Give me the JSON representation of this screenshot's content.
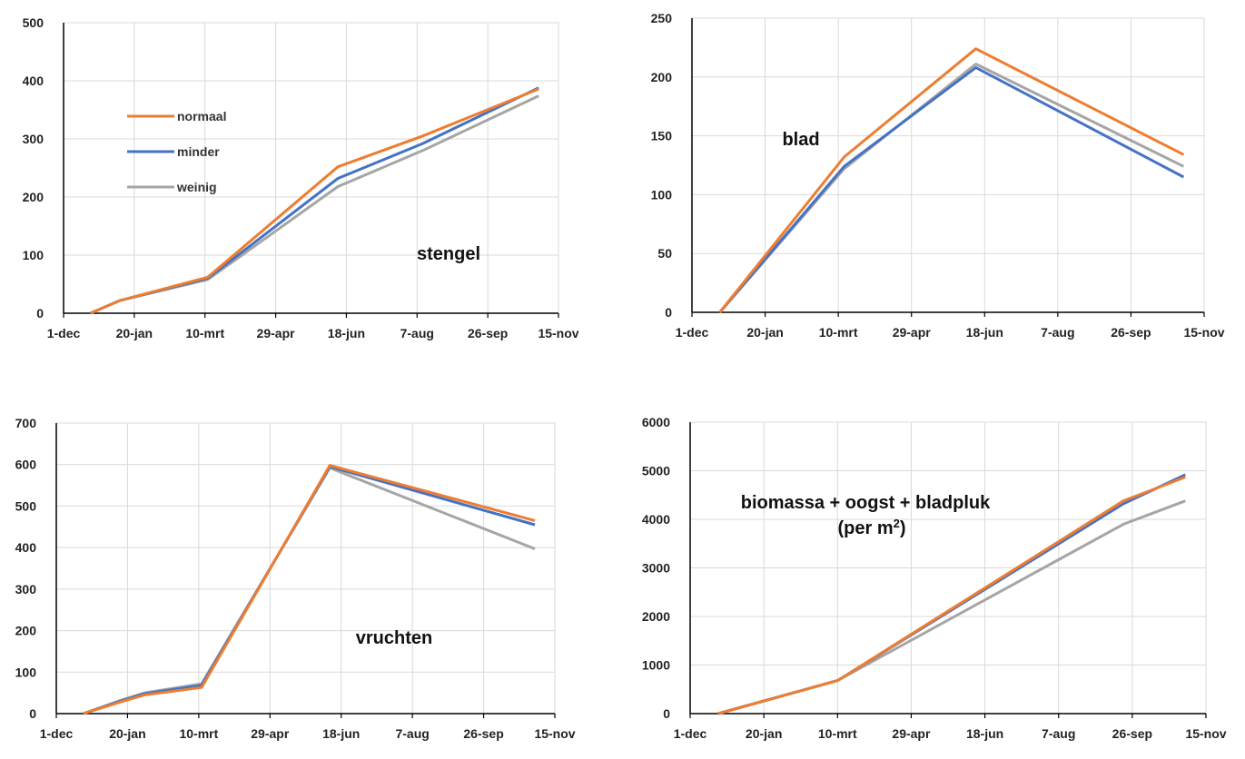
{
  "colors": {
    "normaal": "#ED7D31",
    "minder": "#4472C4",
    "weinig": "#A5A5A5"
  },
  "legend": {
    "placement": "inside-top-left of first chart",
    "items": [
      {
        "name": "normaal",
        "color": "#ED7D31"
      },
      {
        "name": "minder",
        "color": "#4472C4"
      },
      {
        "name": "weinig",
        "color": "#A5A5A5"
      }
    ]
  },
  "chart_data": [
    {
      "type": "line",
      "label": "stengel",
      "x_ticks": [
        "1-dec",
        "20-jan",
        "10-mrt",
        "29-apr",
        "18-jun",
        "7-aug",
        "26-sep",
        "15-nov"
      ],
      "xlim": [
        "1-dec",
        "15-nov"
      ],
      "ylim": [
        0,
        500
      ],
      "y_ticks": [
        0,
        100,
        200,
        300,
        400,
        500
      ],
      "grid": true,
      "series": [
        {
          "name": "normaal",
          "color": "#ED7D31",
          "points": [
            [
              "20-dec",
              0
            ],
            [
              "10-jan",
              22
            ],
            [
              "12-mrt",
              62
            ],
            [
              "12-jun",
              252
            ],
            [
              "11-aug",
              305
            ],
            [
              "1-nov",
              386
            ]
          ]
        },
        {
          "name": "minder",
          "color": "#4472C4",
          "points": [
            [
              "20-dec",
              0
            ],
            [
              "10-jan",
              22
            ],
            [
              "12-mrt",
              60
            ],
            [
              "12-jun",
              232
            ],
            [
              "11-aug",
              292
            ],
            [
              "1-nov",
              388
            ]
          ]
        },
        {
          "name": "weinig",
          "color": "#A5A5A5",
          "points": [
            [
              "20-dec",
              0
            ],
            [
              "10-jan",
              22
            ],
            [
              "12-mrt",
              58
            ],
            [
              "12-jun",
              218
            ],
            [
              "11-aug",
              280
            ],
            [
              "1-nov",
              374
            ]
          ]
        }
      ]
    },
    {
      "type": "line",
      "label": "blad",
      "x_ticks": [
        "1-dec",
        "20-jan",
        "10-mrt",
        "29-apr",
        "18-jun",
        "7-aug",
        "26-sep",
        "15-nov"
      ],
      "xlim": [
        "1-dec",
        "15-nov"
      ],
      "ylim": [
        0,
        250
      ],
      "y_ticks": [
        0,
        50,
        100,
        150,
        200,
        250
      ],
      "grid": true,
      "series": [
        {
          "name": "normaal",
          "color": "#ED7D31",
          "points": [
            [
              "20-dec",
              0
            ],
            [
              "14-mrt",
              132
            ],
            [
              "12-jun",
              224
            ],
            [
              "1-nov",
              134
            ]
          ]
        },
        {
          "name": "minder",
          "color": "#4472C4",
          "points": [
            [
              "20-dec",
              0
            ],
            [
              "14-mrt",
              124
            ],
            [
              "12-jun",
              208
            ],
            [
              "1-nov",
              115
            ]
          ]
        },
        {
          "name": "weinig",
          "color": "#A5A5A5",
          "points": [
            [
              "20-dec",
              0
            ],
            [
              "14-mrt",
              122
            ],
            [
              "12-jun",
              211
            ],
            [
              "1-nov",
              124
            ]
          ]
        }
      ]
    },
    {
      "type": "line",
      "label": "vruchten",
      "x_ticks": [
        "1-dec",
        "20-jan",
        "10-mrt",
        "29-apr",
        "18-jun",
        "7-aug",
        "26-sep",
        "15-nov"
      ],
      "xlim": [
        "1-dec",
        "15-nov"
      ],
      "ylim": [
        0,
        700
      ],
      "y_ticks": [
        0,
        100,
        200,
        300,
        400,
        500,
        600,
        700
      ],
      "grid": true,
      "series": [
        {
          "name": "normaal",
          "color": "#ED7D31",
          "points": [
            [
              "20-dec",
              0
            ],
            [
              "15-jan",
              28
            ],
            [
              "1-feb",
              45
            ],
            [
              "12-mrt",
              63
            ],
            [
              "10-jun",
              598
            ],
            [
              "1-nov",
              465
            ]
          ]
        },
        {
          "name": "minder",
          "color": "#4472C4",
          "points": [
            [
              "20-dec",
              0
            ],
            [
              "15-jan",
              30
            ],
            [
              "1-feb",
              48
            ],
            [
              "12-mrt",
              68
            ],
            [
              "10-jun",
              595
            ],
            [
              "1-nov",
              455
            ]
          ]
        },
        {
          "name": "weinig",
          "color": "#A5A5A5",
          "points": [
            [
              "20-dec",
              0
            ],
            [
              "15-jan",
              32
            ],
            [
              "1-feb",
              50
            ],
            [
              "12-mrt",
              72
            ],
            [
              "10-jun",
              592
            ],
            [
              "1-nov",
              397
            ]
          ]
        }
      ]
    },
    {
      "type": "line",
      "label": "biomassa + oogst + bladpluk",
      "label_line2": "(per m",
      "label_sup": "2",
      "label_close": ")",
      "x_ticks": [
        "1-dec",
        "20-jan",
        "10-mrt",
        "29-apr",
        "18-jun",
        "7-aug",
        "26-sep",
        "15-nov"
      ],
      "xlim": [
        "1-dec",
        "15-nov"
      ],
      "ylim": [
        0,
        6000
      ],
      "y_ticks": [
        0,
        1000,
        2000,
        3000,
        4000,
        5000,
        6000
      ],
      "grid": true,
      "series": [
        {
          "name": "normaal",
          "color": "#ED7D31",
          "points": [
            [
              "20-dec",
              0
            ],
            [
              "10-mrt",
              680
            ],
            [
              "20-sep",
              4380
            ],
            [
              "1-nov",
              4870
            ]
          ]
        },
        {
          "name": "minder",
          "color": "#4472C4",
          "points": [
            [
              "20-dec",
              0
            ],
            [
              "10-mrt",
              680
            ],
            [
              "20-sep",
              4320
            ],
            [
              "1-nov",
              4920
            ]
          ]
        },
        {
          "name": "weinig",
          "color": "#A5A5A5",
          "points": [
            [
              "20-dec",
              0
            ],
            [
              "10-mrt",
              680
            ],
            [
              "20-sep",
              3900
            ],
            [
              "1-nov",
              4380
            ]
          ]
        }
      ]
    }
  ]
}
